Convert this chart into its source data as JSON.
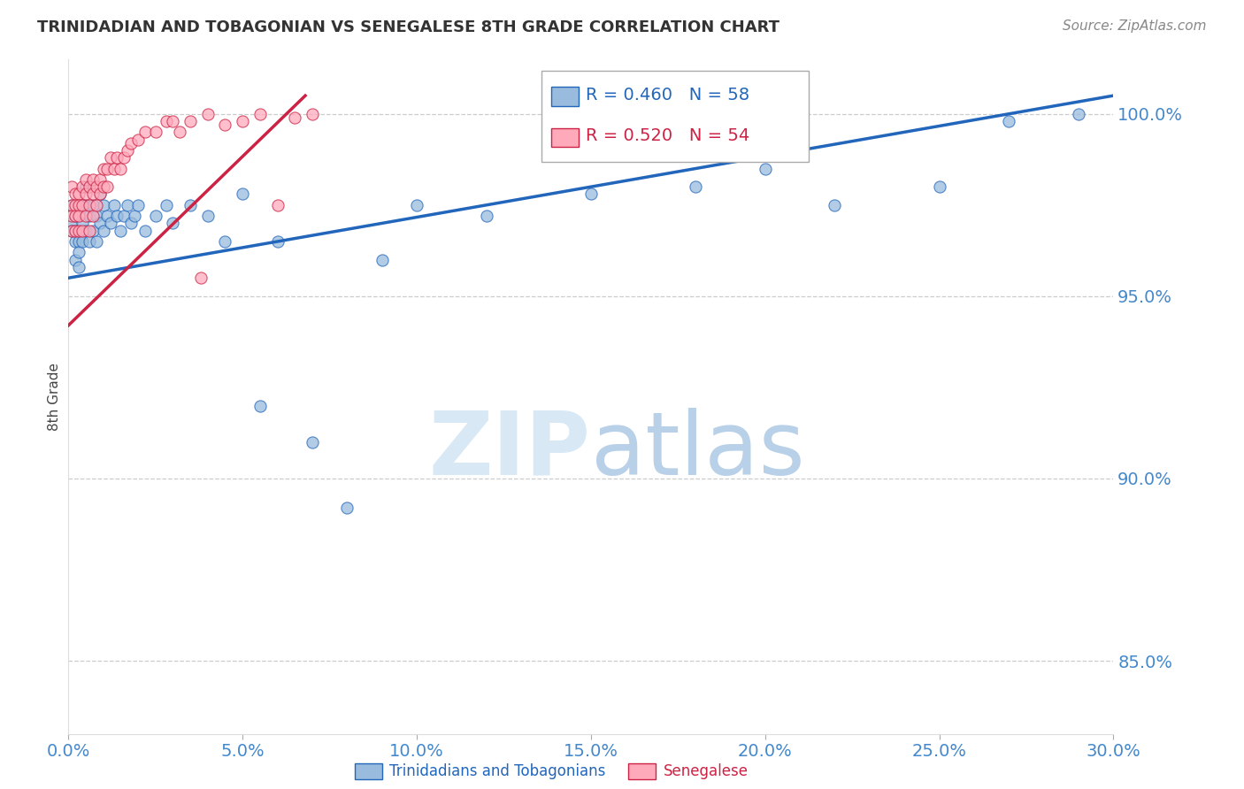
{
  "title": "TRINIDADIAN AND TOBAGONIAN VS SENEGALESE 8TH GRADE CORRELATION CHART",
  "source": "Source: ZipAtlas.com",
  "ylabel": "8th Grade",
  "legend_labels": [
    "Trinidadians and Tobagonians",
    "Senegalese"
  ],
  "legend_r": [
    0.46,
    0.52
  ],
  "legend_n": [
    58,
    54
  ],
  "blue_color": "#99BBDD",
  "pink_color": "#FFAABB",
  "blue_line_color": "#2266BB",
  "pink_line_color": "#CC2244",
  "axis_tick_color": "#4488CC",
  "title_color": "#333333",
  "source_color": "#888888",
  "grid_color": "#CCCCCC",
  "watermark_color": "#D8E8F5",
  "xmin": 0.0,
  "xmax": 0.3,
  "ymin": 0.83,
  "ymax": 1.015,
  "yticks": [
    0.85,
    0.9,
    0.95,
    1.0
  ],
  "xticks": [
    0.0,
    0.05,
    0.1,
    0.15,
    0.2,
    0.25,
    0.3
  ],
  "blue_x": [
    0.001,
    0.001,
    0.001,
    0.002,
    0.002,
    0.002,
    0.002,
    0.003,
    0.003,
    0.003,
    0.004,
    0.004,
    0.004,
    0.005,
    0.005,
    0.005,
    0.006,
    0.006,
    0.007,
    0.007,
    0.008,
    0.008,
    0.009,
    0.009,
    0.01,
    0.01,
    0.011,
    0.012,
    0.013,
    0.014,
    0.015,
    0.016,
    0.017,
    0.018,
    0.019,
    0.02,
    0.022,
    0.025,
    0.028,
    0.03,
    0.035,
    0.04,
    0.045,
    0.05,
    0.055,
    0.06,
    0.07,
    0.08,
    0.09,
    0.1,
    0.12,
    0.15,
    0.18,
    0.2,
    0.22,
    0.25,
    0.27,
    0.29
  ],
  "blue_y": [
    0.975,
    0.97,
    0.968,
    0.972,
    0.968,
    0.965,
    0.96,
    0.965,
    0.962,
    0.958,
    0.975,
    0.97,
    0.965,
    0.98,
    0.975,
    0.968,
    0.972,
    0.965,
    0.975,
    0.968,
    0.972,
    0.965,
    0.978,
    0.97,
    0.975,
    0.968,
    0.972,
    0.97,
    0.975,
    0.972,
    0.968,
    0.972,
    0.975,
    0.97,
    0.972,
    0.975,
    0.968,
    0.972,
    0.975,
    0.97,
    0.975,
    0.972,
    0.965,
    0.978,
    0.92,
    0.965,
    0.91,
    0.892,
    0.96,
    0.975,
    0.972,
    0.978,
    0.98,
    0.985,
    0.975,
    0.98,
    0.998,
    1.0
  ],
  "pink_x": [
    0.001,
    0.001,
    0.001,
    0.001,
    0.002,
    0.002,
    0.002,
    0.002,
    0.003,
    0.003,
    0.003,
    0.003,
    0.004,
    0.004,
    0.004,
    0.005,
    0.005,
    0.005,
    0.006,
    0.006,
    0.006,
    0.007,
    0.007,
    0.007,
    0.008,
    0.008,
    0.009,
    0.009,
    0.01,
    0.01,
    0.011,
    0.011,
    0.012,
    0.013,
    0.014,
    0.015,
    0.016,
    0.017,
    0.018,
    0.02,
    0.022,
    0.025,
    0.028,
    0.03,
    0.032,
    0.035,
    0.038,
    0.04,
    0.045,
    0.05,
    0.055,
    0.06,
    0.065,
    0.07
  ],
  "pink_y": [
    0.98,
    0.975,
    0.972,
    0.968,
    0.978,
    0.975,
    0.972,
    0.968,
    0.978,
    0.975,
    0.972,
    0.968,
    0.98,
    0.975,
    0.968,
    0.982,
    0.978,
    0.972,
    0.98,
    0.975,
    0.968,
    0.982,
    0.978,
    0.972,
    0.98,
    0.975,
    0.982,
    0.978,
    0.985,
    0.98,
    0.985,
    0.98,
    0.988,
    0.985,
    0.988,
    0.985,
    0.988,
    0.99,
    0.992,
    0.993,
    0.995,
    0.995,
    0.998,
    0.998,
    0.995,
    0.998,
    0.955,
    1.0,
    0.997,
    0.998,
    1.0,
    0.975,
    0.999,
    1.0
  ],
  "blue_trend_x": [
    0.0,
    0.3
  ],
  "blue_trend_y": [
    0.955,
    1.005
  ],
  "pink_trend_x": [
    0.0,
    0.068
  ],
  "pink_trend_y": [
    0.942,
    1.005
  ]
}
